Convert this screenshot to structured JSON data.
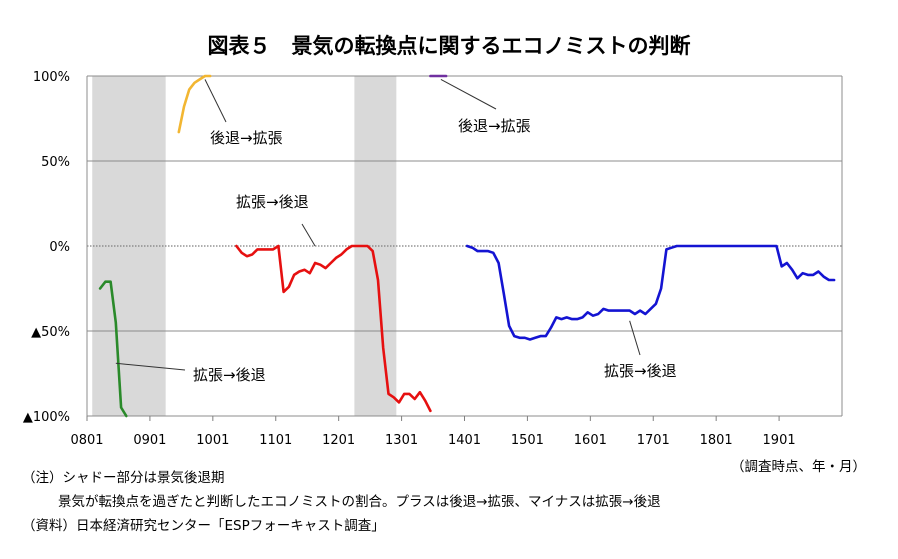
{
  "title": "図表５　景気の転換点に関するエコノミストの判断",
  "axis_note": "（調査時点、年・月）",
  "notes": [
    "（注）シャドー部分は景気後退期",
    "景気が転換点を過ぎたと判断したエコノミストの割合。プラスは後退→拡張、マイナスは拡張→後退",
    "（資料）日本経済研究センター「ESPフォーキャスト調査」"
  ],
  "chart_data": {
    "type": "line",
    "title": "図表５　景気の転換点に関するエコノミストの判断",
    "ylim": [
      -100,
      100
    ],
    "x_range": [
      "2008-01",
      "2019-12"
    ],
    "x_tick_labels": [
      "0801",
      "0901",
      "1001",
      "1101",
      "1201",
      "1301",
      "1401",
      "1501",
      "1601",
      "1701",
      "1801",
      "1901"
    ],
    "y_ticks": [
      {
        "value": 100,
        "label": "100%"
      },
      {
        "value": 50,
        "label": "50%"
      },
      {
        "value": 0,
        "label": "0%"
      },
      {
        "value": -50,
        "label": "▲50%"
      },
      {
        "value": -100,
        "label": "▲100%"
      }
    ],
    "shaded_periods": [
      [
        "2008-02",
        "2009-03"
      ],
      [
        "2012-04",
        "2012-11"
      ]
    ],
    "series": [
      {
        "color": "#2a8a2a",
        "points": [
          [
            "2008-03",
            -25
          ],
          [
            "2008-04",
            -21
          ],
          [
            "2008-05",
            -21
          ],
          [
            "2008-06",
            -45
          ],
          [
            "2008-07",
            -95
          ],
          [
            "2008-08",
            -100
          ]
        ]
      },
      {
        "color": "#f2b632",
        "points": [
          [
            "2009-06",
            67
          ],
          [
            "2009-07",
            82
          ],
          [
            "2009-08",
            92
          ],
          [
            "2009-09",
            96
          ],
          [
            "2009-10",
            98
          ],
          [
            "2009-11",
            100
          ],
          [
            "2009-12",
            100
          ]
        ]
      },
      {
        "color": "#e61010",
        "points": [
          [
            "2010-05",
            0
          ],
          [
            "2010-06",
            -4
          ],
          [
            "2010-07",
            -6
          ],
          [
            "2010-08",
            -5
          ],
          [
            "2010-09",
            -2
          ],
          [
            "2010-10",
            -2
          ],
          [
            "2010-11",
            -2
          ],
          [
            "2010-12",
            -2
          ],
          [
            "2011-01",
            0
          ],
          [
            "2011-02",
            -27
          ],
          [
            "2011-03",
            -24
          ],
          [
            "2011-04",
            -17
          ],
          [
            "2011-05",
            -15
          ],
          [
            "2011-06",
            -14
          ],
          [
            "2011-07",
            -16
          ],
          [
            "2011-08",
            -10
          ],
          [
            "2011-09",
            -11
          ],
          [
            "2011-10",
            -13
          ],
          [
            "2011-11",
            -10
          ],
          [
            "2011-12",
            -7
          ],
          [
            "2012-01",
            -5
          ],
          [
            "2012-02",
            -2
          ],
          [
            "2012-03",
            0
          ],
          [
            "2012-04",
            0
          ],
          [
            "2012-05",
            0
          ],
          [
            "2012-06",
            0
          ],
          [
            "2012-07",
            -3
          ],
          [
            "2012-08",
            -20
          ],
          [
            "2012-09",
            -60
          ],
          [
            "2012-10",
            -87
          ],
          [
            "2012-11",
            -89
          ],
          [
            "2012-12",
            -92
          ],
          [
            "2013-01",
            -87
          ],
          [
            "2013-02",
            -87
          ],
          [
            "2013-03",
            -90
          ],
          [
            "2013-04",
            -86
          ],
          [
            "2013-05",
            -91
          ],
          [
            "2013-06",
            -97
          ]
        ]
      },
      {
        "color": "#7030a0",
        "points": [
          [
            "2013-06",
            100
          ],
          [
            "2013-07",
            100
          ],
          [
            "2013-08",
            100
          ],
          [
            "2013-09",
            100
          ]
        ]
      },
      {
        "color": "#1414d2",
        "points": [
          [
            "2014-01",
            0
          ],
          [
            "2014-02",
            -1
          ],
          [
            "2014-03",
            -3
          ],
          [
            "2014-04",
            -3
          ],
          [
            "2014-05",
            -3
          ],
          [
            "2014-06",
            -4
          ],
          [
            "2014-07",
            -10
          ],
          [
            "2014-08",
            -28
          ],
          [
            "2014-09",
            -47
          ],
          [
            "2014-10",
            -53
          ],
          [
            "2014-11",
            -54
          ],
          [
            "2014-12",
            -54
          ],
          [
            "2015-01",
            -55
          ],
          [
            "2015-02",
            -54
          ],
          [
            "2015-03",
            -53
          ],
          [
            "2015-04",
            -53
          ],
          [
            "2015-05",
            -48
          ],
          [
            "2015-06",
            -42
          ],
          [
            "2015-07",
            -43
          ],
          [
            "2015-08",
            -42
          ],
          [
            "2015-09",
            -43
          ],
          [
            "2015-10",
            -43
          ],
          [
            "2015-11",
            -42
          ],
          [
            "2015-12",
            -39
          ],
          [
            "2016-01",
            -41
          ],
          [
            "2016-02",
            -40
          ],
          [
            "2016-03",
            -37
          ],
          [
            "2016-04",
            -38
          ],
          [
            "2016-05",
            -38
          ],
          [
            "2016-06",
            -38
          ],
          [
            "2016-07",
            -38
          ],
          [
            "2016-08",
            -38
          ],
          [
            "2016-09",
            -40
          ],
          [
            "2016-10",
            -38
          ],
          [
            "2016-11",
            -40
          ],
          [
            "2016-12",
            -37
          ],
          [
            "2017-01",
            -34
          ],
          [
            "2017-02",
            -25
          ],
          [
            "2017-03",
            -2
          ],
          [
            "2017-04",
            -1
          ],
          [
            "2017-05",
            0
          ],
          [
            "2017-06",
            0
          ],
          [
            "2017-07",
            0
          ],
          [
            "2017-08",
            0
          ],
          [
            "2017-09",
            0
          ],
          [
            "2017-10",
            0
          ],
          [
            "2017-11",
            0
          ],
          [
            "2017-12",
            0
          ],
          [
            "2018-01",
            0
          ],
          [
            "2018-02",
            0
          ],
          [
            "2018-03",
            0
          ],
          [
            "2018-04",
            0
          ],
          [
            "2018-05",
            0
          ],
          [
            "2018-06",
            0
          ],
          [
            "2018-07",
            0
          ],
          [
            "2018-08",
            0
          ],
          [
            "2018-09",
            0
          ],
          [
            "2018-10",
            0
          ],
          [
            "2018-11",
            0
          ],
          [
            "2018-12",
            0
          ],
          [
            "2019-01",
            -12
          ],
          [
            "2019-02",
            -10
          ],
          [
            "2019-03",
            -14
          ],
          [
            "2019-04",
            -19
          ],
          [
            "2019-05",
            -16
          ],
          [
            "2019-06",
            -17
          ],
          [
            "2019-07",
            -17
          ],
          [
            "2019-08",
            -15
          ],
          [
            "2019-09",
            -18
          ],
          [
            "2019-10",
            -20
          ],
          [
            "2019-11",
            -20
          ]
        ]
      }
    ],
    "annotations": [
      {
        "text": "後退→拡張",
        "leader_from": [
          "2009-11",
          98
        ]
      },
      {
        "text": "後退→拡張",
        "leader_from": [
          "2013-08",
          98
        ]
      },
      {
        "text": "拡張→後退",
        "leader_from": [
          "2011-08",
          0
        ]
      },
      {
        "text": "拡張→後退",
        "leader_from": [
          "2008-06",
          -69
        ]
      },
      {
        "text": "拡張→後退",
        "leader_from": [
          "2016-08",
          -44
        ]
      }
    ]
  }
}
